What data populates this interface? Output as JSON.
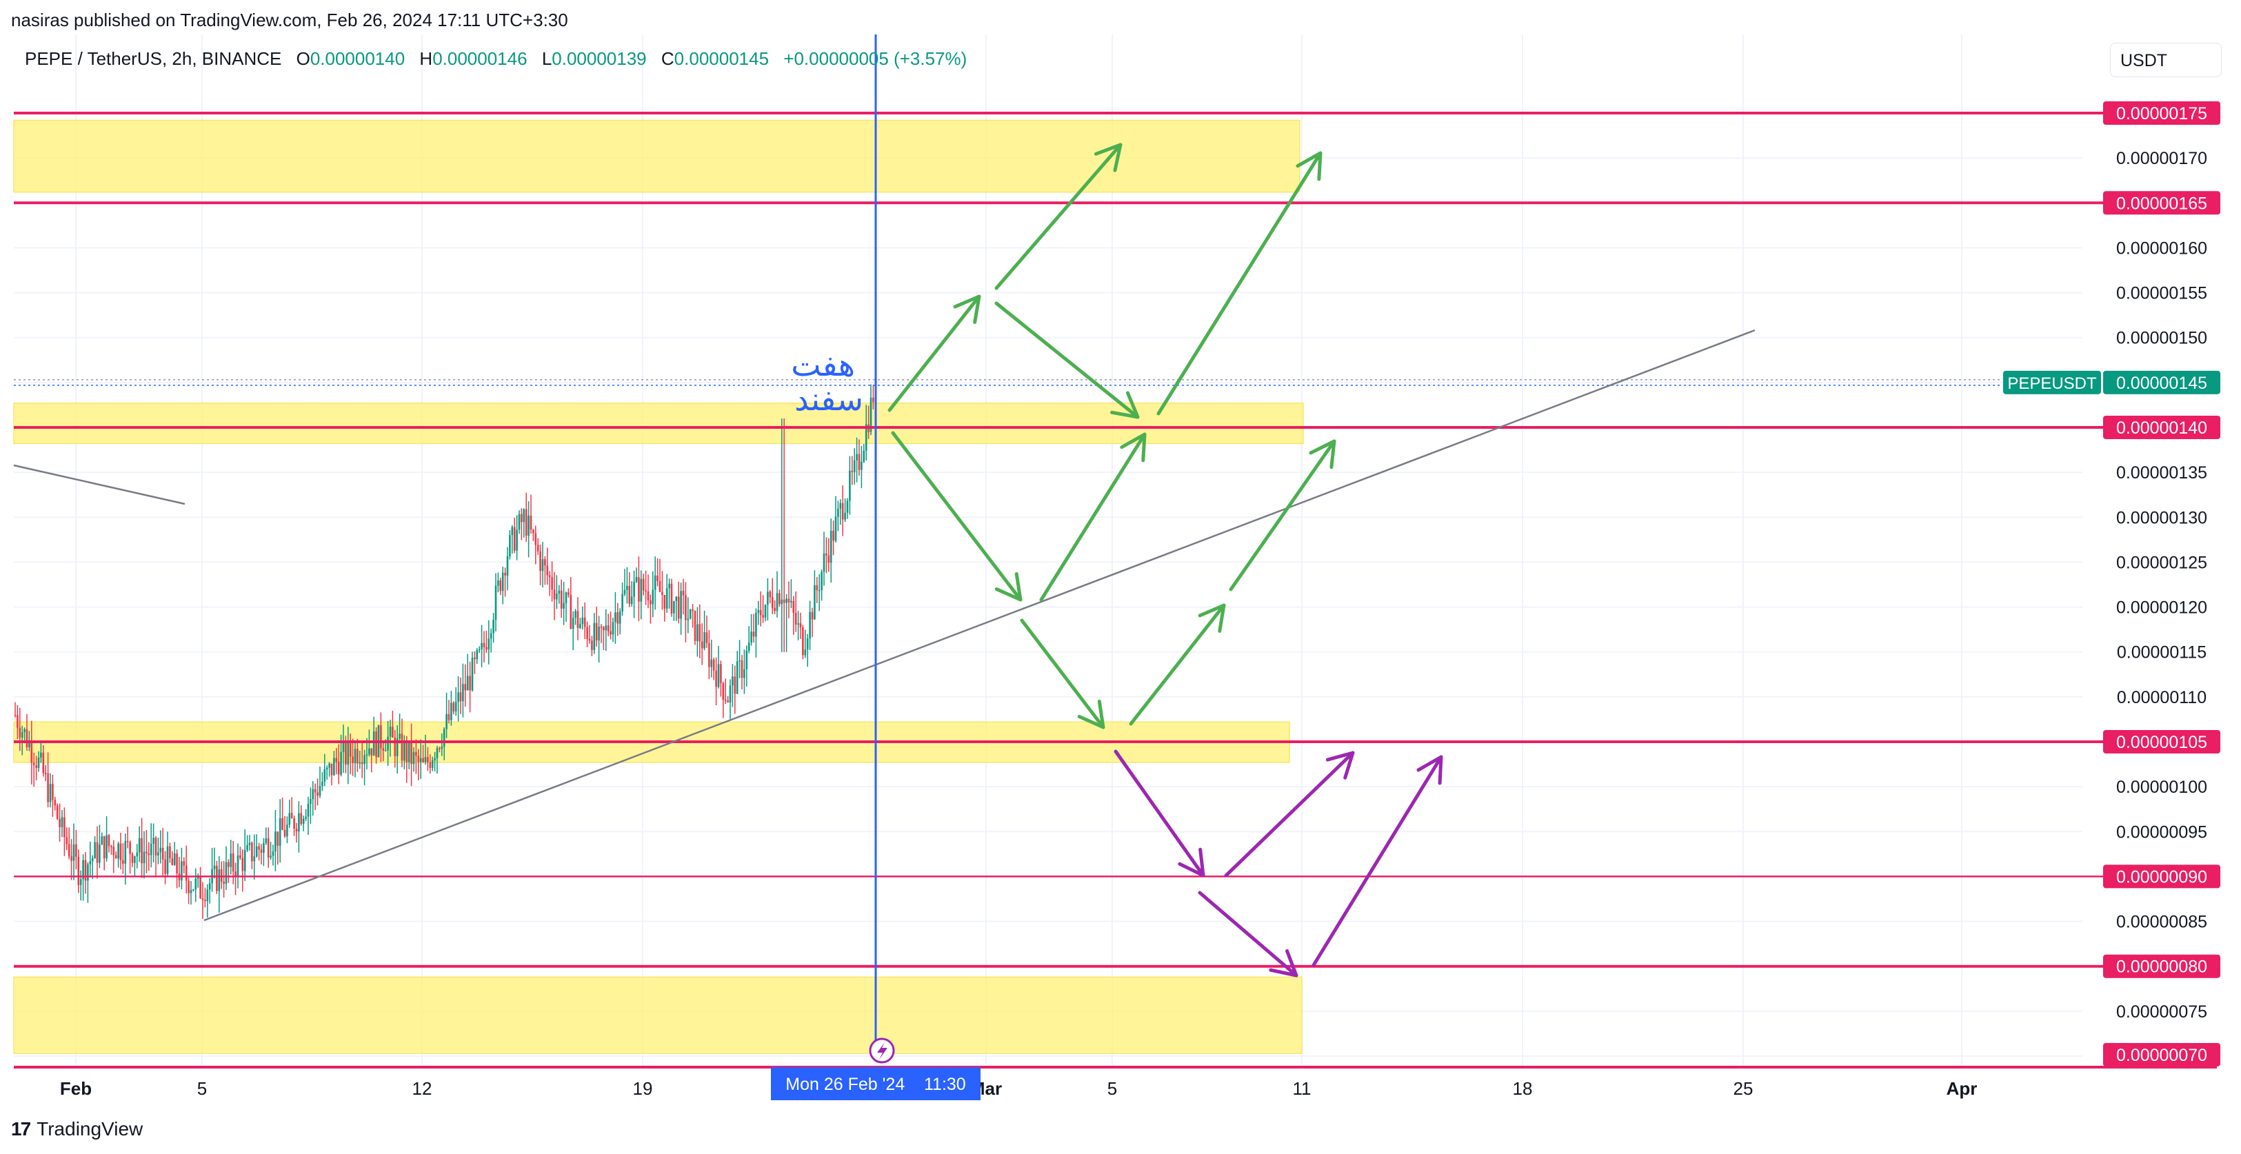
{
  "caption": "nasiras published on TradingView.com, Feb 26, 2024 17:11 UTC+3:30",
  "legend": {
    "symbol": "PEPE / TetherUS, 2h, BINANCE",
    "o_label": "O",
    "o": "0.00000140",
    "h_label": "H",
    "h": "0.00000146",
    "l_label": "L",
    "l": "0.00000139",
    "c_label": "C",
    "c": "0.00000145",
    "change": "+0.00000005 (+3.57%)"
  },
  "currency": "USDT",
  "brand": "TradingView",
  "chart_data": {
    "type": "candlestick",
    "timeframe": "2h",
    "ylim": [
      6.8e-07,
      1.78e-06
    ],
    "y_ticks": [
      "0.00000075",
      "0.00000085",
      "0.00000095",
      "0.00000100",
      "0.00000110",
      "0.00000115",
      "0.00000120",
      "0.00000125",
      "0.00000130",
      "0.00000135",
      "0.00000150",
      "0.00000155",
      "0.00000160",
      "0.00000170"
    ],
    "x_ticks": [
      "Feb",
      "5",
      "12",
      "19",
      "Mar",
      "5",
      "11",
      "18",
      "25",
      "Apr"
    ],
    "crosshair_label": "Mon 26 Feb '24    11:30",
    "last_price": {
      "label": "PEPEUSDT",
      "value": "0.00000145"
    },
    "levels": [
      {
        "value": "0.00000175"
      },
      {
        "value": "0.00000165"
      },
      {
        "value": "0.00000140"
      },
      {
        "value": "0.00000105"
      },
      {
        "value": "0.00000090"
      },
      {
        "value": "0.00000080"
      },
      {
        "value": "0.00000070"
      }
    ],
    "zones": [
      {
        "from": 1.662e-06,
        "to": 1.742e-06
      },
      {
        "from": 1.382e-06,
        "to": 1.427e-06
      },
      {
        "from": 1.027e-06,
        "to": 1.072e-06
      },
      {
        "from": 7.03e-07,
        "to": 7.88e-07
      }
    ],
    "annotation_text": [
      "هفت",
      "سفند"
    ],
    "colors": {
      "up": "#089981",
      "down": "#f23645",
      "level": "#e91e63",
      "zone": "#fff176",
      "green_arrow": "#4caf50",
      "purple_arrow": "#9c27b0",
      "crosshair": "#2962ff"
    }
  }
}
